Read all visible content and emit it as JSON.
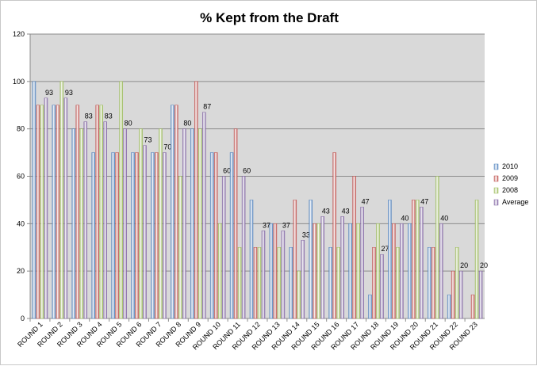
{
  "chart_data": {
    "type": "bar",
    "title": "% Kept from the Draft",
    "xlabel": "",
    "ylabel": "",
    "ylim": [
      0,
      120
    ],
    "yticks": [
      0,
      20,
      40,
      60,
      80,
      100,
      120
    ],
    "grid": true,
    "legend_position": "right",
    "categories": [
      "ROUND 1",
      "ROUND 2",
      "ROUND 3",
      "ROUND 4",
      "ROUND 5",
      "ROUND 6",
      "ROUND 7",
      "ROUND 8",
      "ROUND 9",
      "ROUND 10",
      "ROUND 11",
      "ROUND 12",
      "ROUND 13",
      "ROUND 14",
      "ROUND 15",
      "ROUND 16",
      "ROUND 17",
      "ROUND 18",
      "ROUND 19",
      "ROUND 20",
      "ROUND 21",
      "ROUND 22",
      "ROUND 23"
    ],
    "series": [
      {
        "name": "2010",
        "color": "#4f81bd",
        "values": [
          100,
          90,
          80,
          70,
          70,
          70,
          70,
          90,
          80,
          70,
          70,
          50,
          40,
          30,
          50,
          30,
          40,
          10,
          50,
          40,
          30,
          10,
          0
        ]
      },
      {
        "name": "2009",
        "color": "#c0504d",
        "values": [
          90,
          90,
          90,
          90,
          70,
          70,
          70,
          90,
          100,
          70,
          80,
          30,
          40,
          50,
          40,
          70,
          60,
          30,
          40,
          50,
          30,
          20,
          10
        ]
      },
      {
        "name": "2008",
        "color": "#9bbb59",
        "values": [
          90,
          100,
          80,
          90,
          100,
          80,
          80,
          60,
          80,
          40,
          30,
          30,
          30,
          20,
          40,
          30,
          40,
          40,
          30,
          50,
          60,
          30,
          50
        ]
      },
      {
        "name": "Average",
        "color": "#8064a2",
        "values": [
          93,
          93,
          83,
          83,
          80,
          73,
          70,
          80,
          87,
          60,
          60,
          37,
          37,
          33,
          43,
          43,
          47,
          27,
          40,
          47,
          40,
          20,
          20
        ]
      }
    ],
    "data_labels": [
      "93",
      "93",
      "83",
      "83",
      "80",
      "73",
      "70",
      "80",
      "87",
      "60",
      "60",
      "37",
      "37",
      "33",
      "43",
      "43",
      "47",
      "27",
      "40",
      "47",
      "40",
      "20",
      "20"
    ]
  }
}
